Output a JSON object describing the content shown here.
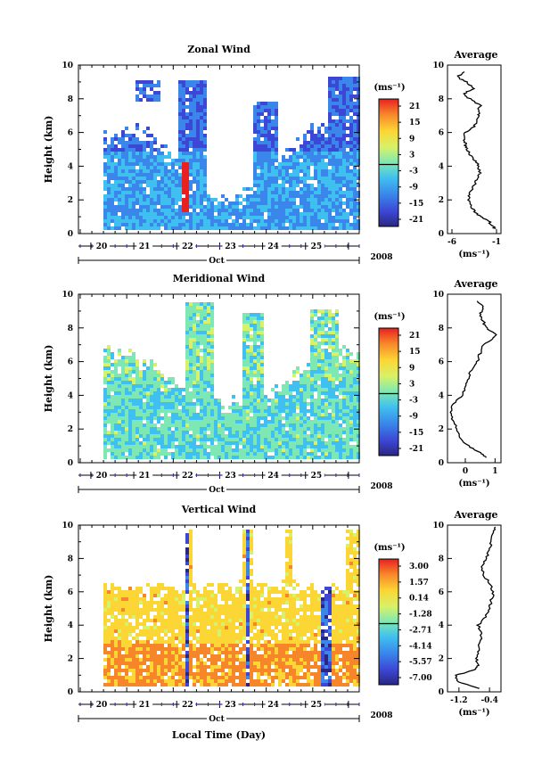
{
  "chart_data": [
    {
      "type": "heatmap",
      "title": "Zonal Wind",
      "ylabel": "Height (km)",
      "ylim": [
        0,
        10
      ],
      "yticks": [
        "0",
        "2",
        "4",
        "6",
        "8",
        "10"
      ],
      "xticks": [
        "20",
        "21",
        "22",
        "23",
        "24",
        "25"
      ],
      "xlabel_month": "Oct",
      "year": "2008",
      "colorbar_unit": "(ms⁻¹)",
      "colorbar_ticks": [
        "21",
        "15",
        "9",
        "3",
        "-3",
        "-9",
        "-15",
        "-21"
      ],
      "colorbar_range": [
        -24,
        24
      ],
      "profile": {
        "title": "Average",
        "xticks": [
          "-6",
          "-1"
        ],
        "xlim": [
          -6.5,
          -0.5
        ],
        "xlabel": "(ms⁻¹)",
        "height": [
          0.3,
          0.5,
          0.8,
          1,
          1.3,
          1.6,
          2,
          2.4,
          2.8,
          3.2,
          3.6,
          4,
          4.3,
          4.6,
          5,
          5.3,
          5.6,
          6,
          6.3,
          6.6,
          7,
          7.3,
          7.6,
          8,
          8.3,
          8.6,
          9,
          9.3,
          9.6
        ],
        "values": [
          -1.2,
          -1.5,
          -2.0,
          -2.8,
          -3.4,
          -3.8,
          -4.2,
          -4.0,
          -3.6,
          -3.2,
          -2.9,
          -3.0,
          -3.4,
          -3.9,
          -4.3,
          -4.5,
          -4.6,
          -4.5,
          -3.6,
          -3.2,
          -3.0,
          -3.1,
          -2.8,
          -4.0,
          -4.7,
          -3.6,
          -4.4,
          -5.4,
          -4.6
        ]
      }
    },
    {
      "type": "heatmap",
      "title": "Meridional Wind",
      "ylabel": "Height (km)",
      "ylim": [
        0,
        10
      ],
      "yticks": [
        "0",
        "2",
        "4",
        "6",
        "8",
        "10"
      ],
      "xticks": [
        "20",
        "21",
        "22",
        "23",
        "24",
        "25"
      ],
      "xlabel_month": "Oct",
      "year": "2008",
      "colorbar_unit": "(ms⁻¹)",
      "colorbar_ticks": [
        "21",
        "15",
        "9",
        "3",
        "-3",
        "-9",
        "-15",
        "-21"
      ],
      "colorbar_range": [
        -24,
        24
      ],
      "profile": {
        "title": "Average",
        "xticks": [
          "0",
          "1"
        ],
        "xlim": [
          -0.6,
          1.2
        ],
        "xlabel": "(ms⁻¹)",
        "height": [
          0.3,
          0.6,
          1,
          1.5,
          2,
          2.5,
          3,
          3.5,
          4,
          4.5,
          5,
          5.5,
          6,
          6.5,
          7,
          7.3,
          7.6,
          8,
          8.4,
          8.8,
          9.2,
          9.6
        ],
        "values": [
          0.7,
          0.5,
          0.1,
          -0.2,
          -0.3,
          -0.4,
          -0.5,
          -0.4,
          -0.1,
          0.0,
          0.1,
          0.2,
          0.4,
          0.5,
          0.6,
          0.9,
          1.0,
          0.7,
          0.6,
          0.5,
          0.6,
          0.4
        ]
      }
    },
    {
      "type": "heatmap",
      "title": "Vertical Wind",
      "ylabel": "Height (km)",
      "ylim": [
        0,
        10
      ],
      "yticks": [
        "0",
        "2",
        "4",
        "6",
        "8",
        "10"
      ],
      "xticks": [
        "20",
        "21",
        "22",
        "23",
        "24",
        "25"
      ],
      "xlabel_month": "Oct",
      "year": "2008",
      "xlabel": "Local Time (Day)",
      "colorbar_unit": "(ms⁻¹)",
      "colorbar_ticks": [
        "3.00",
        "1.57",
        "0.14",
        "-1.28",
        "-2.71",
        "-4.14",
        "-5.57",
        "-7.00"
      ],
      "colorbar_range": [
        -7.5,
        3.5
      ],
      "profile": {
        "title": "Average",
        "xticks": [
          "-1.2",
          "-0.4"
        ],
        "xlim": [
          -1.5,
          -0.1
        ],
        "xlabel": "(ms⁻¹)",
        "height": [
          0.2,
          0.6,
          1,
          1.3,
          1.6,
          2,
          2.5,
          3,
          3.5,
          4,
          4.5,
          5,
          5.5,
          6,
          6.5,
          7,
          7.5,
          8,
          8.5,
          9,
          9.5,
          9.9
        ],
        "values": [
          -0.7,
          -1.2,
          -1.3,
          -0.8,
          -0.7,
          -0.75,
          -0.7,
          -0.65,
          -0.6,
          -0.7,
          -0.5,
          -0.4,
          -0.35,
          -0.3,
          -0.4,
          -0.55,
          -0.6,
          -0.5,
          -0.4,
          -0.35,
          -0.3,
          -0.25
        ]
      }
    }
  ]
}
